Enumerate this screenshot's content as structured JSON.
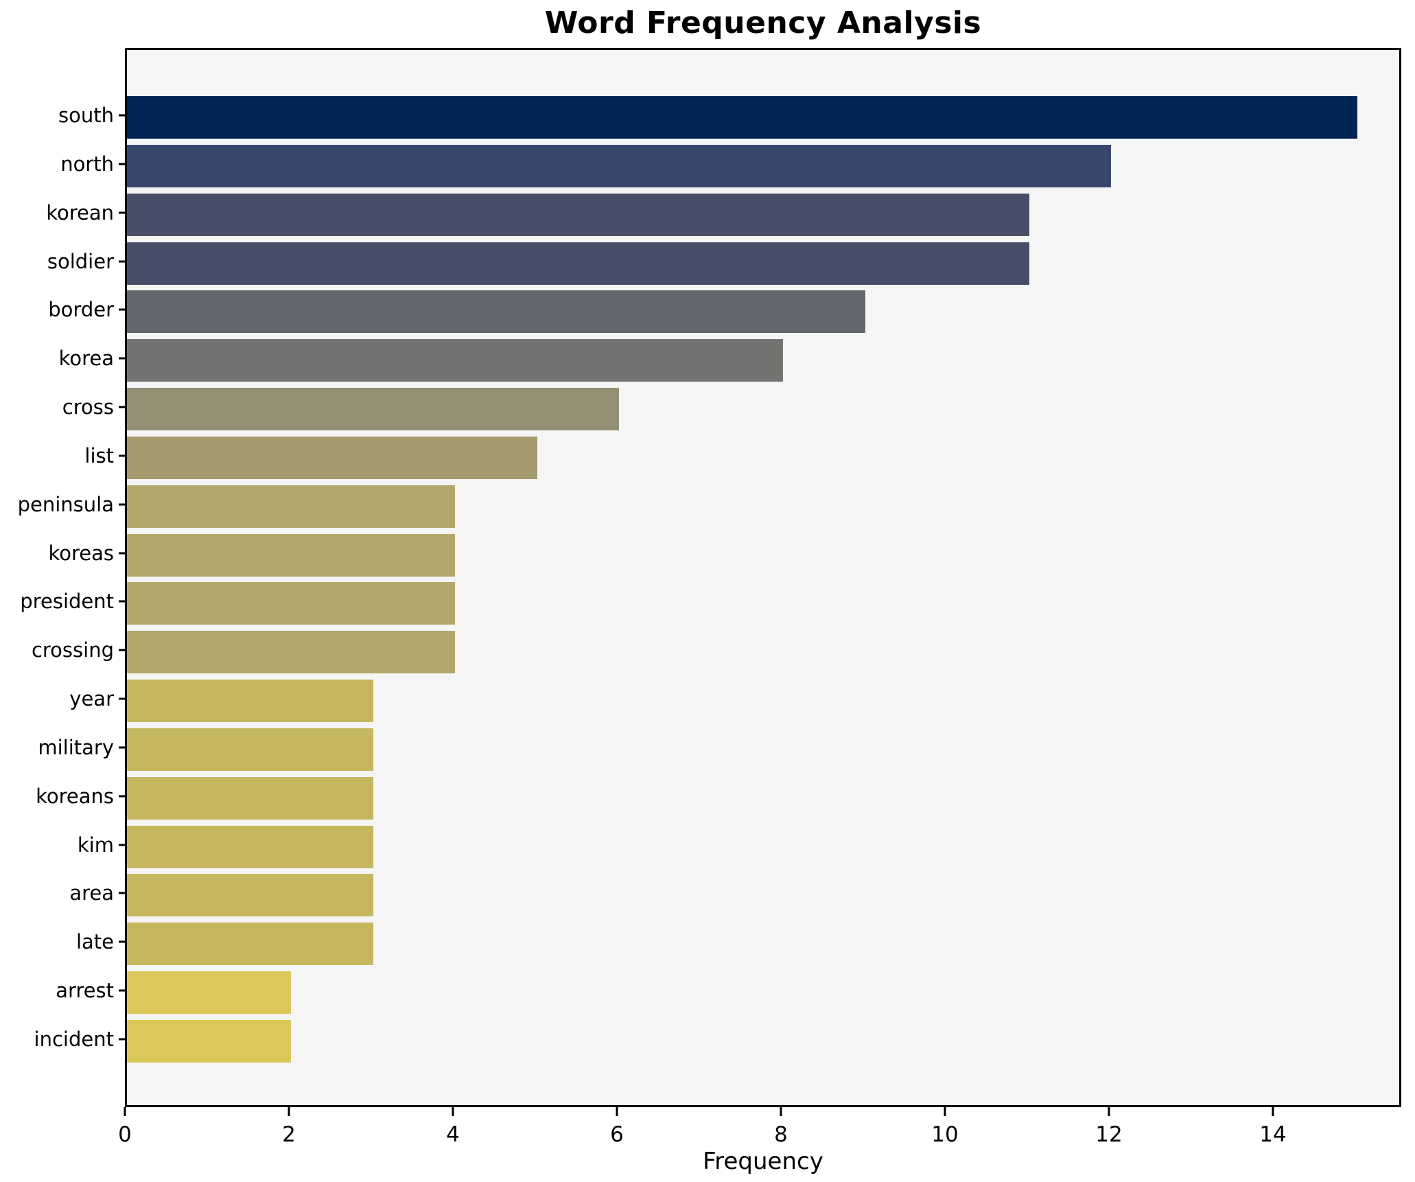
{
  "title": "Word Frequency Analysis",
  "chart_data": {
    "type": "bar",
    "orientation": "horizontal",
    "title": "Word Frequency Analysis",
    "xlabel": "Frequency",
    "ylabel": "",
    "grid": false,
    "legend": false,
    "categories": [
      "south",
      "north",
      "korean",
      "soldier",
      "border",
      "korea",
      "cross",
      "list",
      "peninsula",
      "koreas",
      "president",
      "crossing",
      "year",
      "military",
      "koreans",
      "kim",
      "area",
      "late",
      "arrest",
      "incident"
    ],
    "values": [
      15,
      12,
      11,
      11,
      9,
      8,
      6,
      5,
      4,
      4,
      4,
      4,
      3,
      3,
      3,
      3,
      3,
      3,
      2,
      2
    ],
    "bar_colors": [
      "#002452",
      "#36476b",
      "#474f68",
      "#474f68",
      "#64666e",
      "#737371",
      "#948e74",
      "#a49a6d",
      "#b4a76b",
      "#b4a76b",
      "#b4a76b",
      "#b4a76b",
      "#c5b660",
      "#c5b660",
      "#c5b660",
      "#c5b660",
      "#c5b660",
      "#c5b660",
      "#dbc75a",
      "#dbc75a"
    ],
    "x_ticks": [
      0,
      2,
      4,
      6,
      8,
      10,
      12,
      14
    ],
    "xlim": [
      0,
      15.57
    ],
    "colors": {
      "plot_background": "#f5f5f6",
      "figure_background": "#ffffff",
      "spine": "#000000",
      "text": "#000000"
    }
  }
}
